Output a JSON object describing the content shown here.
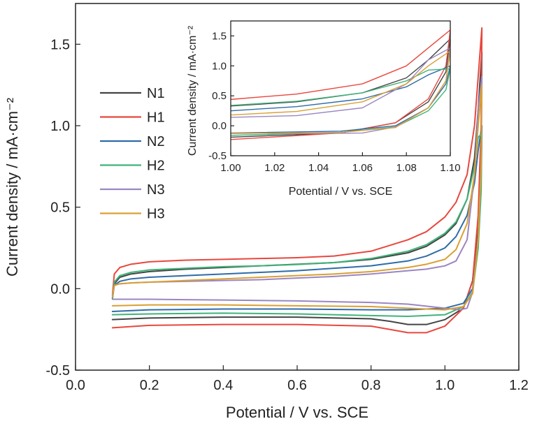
{
  "chart_data": {
    "type": "line",
    "xlabel": "Potential / V vs. SCE",
    "ylabel": "Current density / mA·cm⁻²",
    "xlim": [
      0.0,
      1.2
    ],
    "ylim": [
      -0.5,
      1.75
    ],
    "xticks": [
      "0.0",
      "0.2",
      "0.4",
      "0.6",
      "0.8",
      "1.0",
      "1.2"
    ],
    "yticks": [
      "-0.5",
      "0.0",
      "0.5",
      "1.0",
      "1.5"
    ],
    "legend_position": "left",
    "series": [
      {
        "name": "N1",
        "color": "#444444",
        "values": [
          [
            0.1,
            -0.06
          ],
          [
            0.105,
            0.03
          ],
          [
            0.12,
            0.07
          ],
          [
            0.15,
            0.09
          ],
          [
            0.2,
            0.105
          ],
          [
            0.3,
            0.12
          ],
          [
            0.4,
            0.13
          ],
          [
            0.5,
            0.14
          ],
          [
            0.6,
            0.15
          ],
          [
            0.7,
            0.16
          ],
          [
            0.8,
            0.18
          ],
          [
            0.9,
            0.22
          ],
          [
            0.95,
            0.26
          ],
          [
            1.0,
            0.33
          ],
          [
            1.03,
            0.4
          ],
          [
            1.06,
            0.55
          ],
          [
            1.08,
            0.8
          ],
          [
            1.09,
            1.1
          ],
          [
            1.1,
            1.45
          ],
          [
            1.098,
            0.9
          ],
          [
            1.09,
            0.4
          ],
          [
            1.075,
            0.05
          ],
          [
            1.05,
            -0.12
          ],
          [
            1.0,
            -0.19
          ],
          [
            0.95,
            -0.22
          ],
          [
            0.9,
            -0.22
          ],
          [
            0.85,
            -0.2
          ],
          [
            0.8,
            -0.185
          ],
          [
            0.6,
            -0.175
          ],
          [
            0.4,
            -0.175
          ],
          [
            0.2,
            -0.18
          ],
          [
            0.1,
            -0.19
          ]
        ]
      },
      {
        "name": "H1",
        "color": "#e8473d",
        "values": [
          [
            0.1,
            -0.04
          ],
          [
            0.105,
            0.09
          ],
          [
            0.12,
            0.13
          ],
          [
            0.15,
            0.15
          ],
          [
            0.2,
            0.165
          ],
          [
            0.3,
            0.175
          ],
          [
            0.4,
            0.18
          ],
          [
            0.5,
            0.185
          ],
          [
            0.6,
            0.19
          ],
          [
            0.7,
            0.2
          ],
          [
            0.8,
            0.23
          ],
          [
            0.9,
            0.3
          ],
          [
            0.95,
            0.35
          ],
          [
            1.0,
            0.44
          ],
          [
            1.03,
            0.53
          ],
          [
            1.06,
            0.7
          ],
          [
            1.08,
            1.0
          ],
          [
            1.09,
            1.3
          ],
          [
            1.1,
            1.6
          ],
          [
            1.098,
            1.0
          ],
          [
            1.09,
            0.45
          ],
          [
            1.075,
            0.05
          ],
          [
            1.05,
            -0.12
          ],
          [
            1.0,
            -0.23
          ],
          [
            0.95,
            -0.27
          ],
          [
            0.9,
            -0.27
          ],
          [
            0.85,
            -0.25
          ],
          [
            0.8,
            -0.23
          ],
          [
            0.6,
            -0.22
          ],
          [
            0.4,
            -0.22
          ],
          [
            0.2,
            -0.225
          ],
          [
            0.1,
            -0.24
          ]
        ]
      },
      {
        "name": "N2",
        "color": "#2e6ca8",
        "values": [
          [
            0.1,
            -0.06
          ],
          [
            0.105,
            0.02
          ],
          [
            0.12,
            0.045
          ],
          [
            0.15,
            0.06
          ],
          [
            0.2,
            0.07
          ],
          [
            0.3,
            0.08
          ],
          [
            0.4,
            0.09
          ],
          [
            0.5,
            0.1
          ],
          [
            0.6,
            0.11
          ],
          [
            0.7,
            0.125
          ],
          [
            0.8,
            0.14
          ],
          [
            0.9,
            0.17
          ],
          [
            0.95,
            0.2
          ],
          [
            1.0,
            0.25
          ],
          [
            1.03,
            0.32
          ],
          [
            1.06,
            0.45
          ],
          [
            1.08,
            0.65
          ],
          [
            1.09,
            0.85
          ],
          [
            1.1,
            1.0
          ],
          [
            1.098,
            0.7
          ],
          [
            1.09,
            0.3
          ],
          [
            1.075,
            0.0
          ],
          [
            1.05,
            -0.09
          ],
          [
            1.0,
            -0.12
          ],
          [
            0.9,
            -0.13
          ],
          [
            0.8,
            -0.13
          ],
          [
            0.6,
            -0.125
          ],
          [
            0.4,
            -0.125
          ],
          [
            0.2,
            -0.13
          ],
          [
            0.1,
            -0.14
          ]
        ]
      },
      {
        "name": "H2",
        "color": "#3fb37a",
        "values": [
          [
            0.1,
            -0.06
          ],
          [
            0.105,
            0.04
          ],
          [
            0.12,
            0.08
          ],
          [
            0.15,
            0.1
          ],
          [
            0.2,
            0.115
          ],
          [
            0.3,
            0.125
          ],
          [
            0.4,
            0.135
          ],
          [
            0.5,
            0.14
          ],
          [
            0.6,
            0.148
          ],
          [
            0.7,
            0.16
          ],
          [
            0.8,
            0.185
          ],
          [
            0.9,
            0.23
          ],
          [
            0.95,
            0.27
          ],
          [
            1.0,
            0.34
          ],
          [
            1.03,
            0.41
          ],
          [
            1.06,
            0.55
          ],
          [
            1.08,
            0.75
          ],
          [
            1.09,
            0.93
          ],
          [
            1.1,
            0.95
          ],
          [
            1.098,
            0.6
          ],
          [
            1.09,
            0.25
          ],
          [
            1.075,
            -0.02
          ],
          [
            1.05,
            -0.11
          ],
          [
            1.0,
            -0.16
          ],
          [
            0.9,
            -0.17
          ],
          [
            0.8,
            -0.165
          ],
          [
            0.6,
            -0.155
          ],
          [
            0.4,
            -0.15
          ],
          [
            0.2,
            -0.155
          ],
          [
            0.1,
            -0.16
          ]
        ]
      },
      {
        "name": "N3",
        "color": "#9b86c2",
        "values": [
          [
            0.1,
            -0.04
          ],
          [
            0.105,
            0.02
          ],
          [
            0.12,
            0.03
          ],
          [
            0.15,
            0.035
          ],
          [
            0.2,
            0.04
          ],
          [
            0.3,
            0.045
          ],
          [
            0.4,
            0.05
          ],
          [
            0.5,
            0.055
          ],
          [
            0.6,
            0.065
          ],
          [
            0.7,
            0.075
          ],
          [
            0.8,
            0.09
          ],
          [
            0.9,
            0.11
          ],
          [
            0.95,
            0.12
          ],
          [
            1.0,
            0.14
          ],
          [
            1.03,
            0.17
          ],
          [
            1.06,
            0.3
          ],
          [
            1.08,
            0.7
          ],
          [
            1.09,
            1.1
          ],
          [
            1.1,
            1.3
          ],
          [
            1.098,
            0.75
          ],
          [
            1.09,
            0.3
          ],
          [
            1.075,
            -0.02
          ],
          [
            1.06,
            -0.12
          ],
          [
            1.04,
            -0.13
          ],
          [
            1.0,
            -0.12
          ],
          [
            0.9,
            -0.095
          ],
          [
            0.8,
            -0.085
          ],
          [
            0.6,
            -0.075
          ],
          [
            0.4,
            -0.07
          ],
          [
            0.2,
            -0.065
          ],
          [
            0.1,
            -0.065
          ]
        ]
      },
      {
        "name": "H3",
        "color": "#d9a032",
        "values": [
          [
            0.1,
            -0.05
          ],
          [
            0.105,
            0.02
          ],
          [
            0.12,
            0.03
          ],
          [
            0.15,
            0.035
          ],
          [
            0.2,
            0.04
          ],
          [
            0.3,
            0.05
          ],
          [
            0.4,
            0.06
          ],
          [
            0.5,
            0.07
          ],
          [
            0.6,
            0.08
          ],
          [
            0.7,
            0.09
          ],
          [
            0.8,
            0.105
          ],
          [
            0.9,
            0.13
          ],
          [
            0.95,
            0.15
          ],
          [
            1.0,
            0.18
          ],
          [
            1.03,
            0.24
          ],
          [
            1.06,
            0.4
          ],
          [
            1.08,
            0.7
          ],
          [
            1.09,
            1.0
          ],
          [
            1.1,
            1.25
          ],
          [
            1.098,
            0.75
          ],
          [
            1.09,
            0.3
          ],
          [
            1.075,
            -0.03
          ],
          [
            1.05,
            -0.11
          ],
          [
            1.0,
            -0.13
          ],
          [
            0.9,
            -0.12
          ],
          [
            0.8,
            -0.11
          ],
          [
            0.6,
            -0.105
          ],
          [
            0.4,
            -0.1
          ],
          [
            0.2,
            -0.1
          ],
          [
            0.1,
            -0.105
          ]
        ]
      }
    ],
    "inset": {
      "xlabel": "Potential / V vs. SCE",
      "ylabel": "Current density / mA·cm⁻²",
      "xlim": [
        1.0,
        1.1
      ],
      "ylim": [
        -0.5,
        1.75
      ],
      "xticks": [
        "1.00",
        "1.02",
        "1.04",
        "1.06",
        "1.08",
        "1.10"
      ],
      "yticks": [
        "-0.5",
        "0.0",
        "0.5",
        "1.0",
        "1.5"
      ]
    }
  }
}
